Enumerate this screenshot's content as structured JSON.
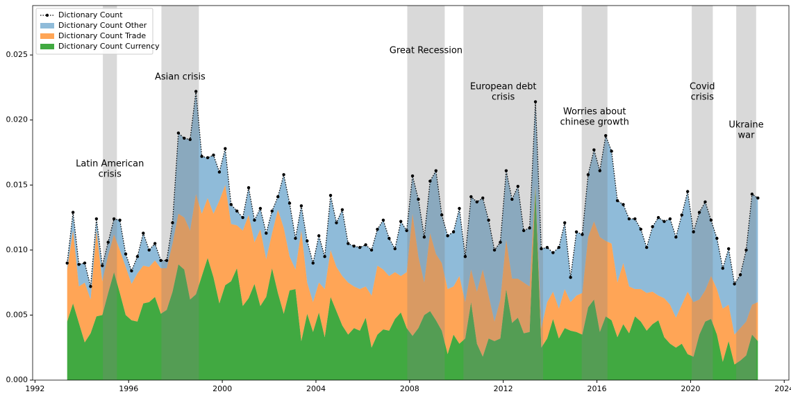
{
  "chart_data": {
    "type": "area",
    "x": [
      1993.375,
      1993.625,
      1993.875,
      1994.125,
      1994.375,
      1994.625,
      1994.875,
      1995.125,
      1995.375,
      1995.625,
      1995.875,
      1996.125,
      1996.375,
      1996.625,
      1996.875,
      1997.125,
      1997.375,
      1997.625,
      1997.875,
      1998.125,
      1998.375,
      1998.625,
      1998.875,
      1999.125,
      1999.375,
      1999.625,
      1999.875,
      2000.125,
      2000.375,
      2000.625,
      2000.875,
      2001.125,
      2001.375,
      2001.625,
      2001.875,
      2002.125,
      2002.375,
      2002.625,
      2002.875,
      2003.125,
      2003.375,
      2003.625,
      2003.875,
      2004.125,
      2004.375,
      2004.625,
      2004.875,
      2005.125,
      2005.375,
      2005.625,
      2005.875,
      2006.125,
      2006.375,
      2006.625,
      2006.875,
      2007.125,
      2007.375,
      2007.625,
      2007.875,
      2008.125,
      2008.375,
      2008.625,
      2008.875,
      2009.125,
      2009.375,
      2009.625,
      2009.875,
      2010.125,
      2010.375,
      2010.625,
      2010.875,
      2011.125,
      2011.375,
      2011.625,
      2011.875,
      2012.125,
      2012.375,
      2012.625,
      2012.875,
      2013.125,
      2013.375,
      2013.625,
      2013.875,
      2014.125,
      2014.375,
      2014.625,
      2014.875,
      2015.125,
      2015.375,
      2015.625,
      2015.875,
      2016.125,
      2016.375,
      2016.625,
      2016.875,
      2017.125,
      2017.375,
      2017.625,
      2017.875,
      2018.125,
      2018.375,
      2018.625,
      2018.875,
      2019.125,
      2019.375,
      2019.625,
      2019.875,
      2020.125,
      2020.375,
      2020.625,
      2020.875,
      2021.125,
      2021.375,
      2021.625,
      2021.875,
      2022.125,
      2022.375,
      2022.625,
      2022.875
    ],
    "series": [
      {
        "name": "Dictionary Count",
        "type": "line",
        "color": "#000000",
        "values": [
          0.009,
          0.0129,
          0.0089,
          0.009,
          0.0072,
          0.0124,
          0.0088,
          0.0106,
          0.0124,
          0.0123,
          0.0097,
          0.0084,
          0.0095,
          0.0113,
          0.01,
          0.0105,
          0.0092,
          0.0092,
          0.0121,
          0.019,
          0.0186,
          0.0185,
          0.0222,
          0.0172,
          0.0171,
          0.0173,
          0.016,
          0.0178,
          0.0135,
          0.013,
          0.0125,
          0.0148,
          0.0123,
          0.0132,
          0.0113,
          0.013,
          0.0141,
          0.0158,
          0.0136,
          0.0109,
          0.0134,
          0.0107,
          0.009,
          0.0111,
          0.0095,
          0.0142,
          0.0121,
          0.0131,
          0.0105,
          0.0103,
          0.0102,
          0.0104,
          0.01,
          0.0116,
          0.0123,
          0.0109,
          0.0101,
          0.0122,
          0.0115,
          0.0157,
          0.0139,
          0.011,
          0.0153,
          0.0161,
          0.0127,
          0.0111,
          0.0114,
          0.0132,
          0.0095,
          0.0141,
          0.0137,
          0.014,
          0.0123,
          0.01,
          0.0106,
          0.0161,
          0.0139,
          0.0149,
          0.0115,
          0.0117,
          0.0214,
          0.0101,
          0.0102,
          0.0098,
          0.0102,
          0.0121,
          0.0079,
          0.0114,
          0.0112,
          0.0158,
          0.0177,
          0.0161,
          0.0188,
          0.0176,
          0.0138,
          0.0135,
          0.0124,
          0.0124,
          0.0116,
          0.0102,
          0.0118,
          0.0125,
          0.0122,
          0.0124,
          0.011,
          0.0127,
          0.0145,
          0.0114,
          0.0129,
          0.0137,
          0.0123,
          0.0109,
          0.0086,
          0.0101,
          0.0074,
          0.0081,
          0.01,
          0.0143,
          0.014
        ]
      },
      {
        "name": "Dictionary Count Other",
        "type": "area",
        "color": "#1f77b4",
        "values": [
          0.0005,
          0.0014,
          0.0017,
          0.0015,
          0.001,
          0.0009,
          0.0012,
          0.001,
          0.0012,
          0.0023,
          0.001,
          0.001,
          0.0013,
          0.0025,
          0.0013,
          0.0013,
          0.0006,
          0.0006,
          0.0016,
          0.0062,
          0.0061,
          0.007,
          0.0079,
          0.0044,
          0.0031,
          0.0045,
          0.0022,
          0.0028,
          0.0015,
          0.0011,
          0.001,
          0.0021,
          0.0017,
          0.0016,
          0.002,
          0.0017,
          0.001,
          0.0041,
          0.0041,
          0.0024,
          0.0019,
          0.0032,
          0.003,
          0.0036,
          0.0025,
          0.0042,
          0.0034,
          0.0051,
          0.003,
          0.0031,
          0.0032,
          0.0032,
          0.0035,
          0.0028,
          0.0038,
          0.0029,
          0.0018,
          0.0042,
          0.0032,
          0.0029,
          0.0044,
          0.0035,
          0.004,
          0.0064,
          0.0037,
          0.0041,
          0.0042,
          0.0052,
          0.0035,
          0.0056,
          0.0069,
          0.0055,
          0.0058,
          0.0055,
          0.0044,
          0.0053,
          0.0061,
          0.0071,
          0.004,
          0.0045,
          0.0064,
          0.0061,
          0.0042,
          0.003,
          0.0047,
          0.0051,
          0.0019,
          0.0049,
          0.0045,
          0.0048,
          0.0055,
          0.0051,
          0.0081,
          0.0071,
          0.0063,
          0.0045,
          0.0052,
          0.0054,
          0.0046,
          0.0035,
          0.005,
          0.006,
          0.0059,
          0.0066,
          0.0062,
          0.0069,
          0.0077,
          0.0054,
          0.0067,
          0.0068,
          0.0043,
          0.0039,
          0.0031,
          0.0043,
          0.0039,
          0.0041,
          0.0055,
          0.0085,
          0.008
        ]
      },
      {
        "name": "Dictionary Count Trade",
        "type": "area",
        "color": "#ff7f0e",
        "values": [
          0.004,
          0.0056,
          0.0028,
          0.0046,
          0.0026,
          0.0066,
          0.0026,
          0.0029,
          0.0029,
          0.0033,
          0.0037,
          0.0028,
          0.0037,
          0.0029,
          0.0027,
          0.0028,
          0.0035,
          0.0032,
          0.0037,
          0.0039,
          0.004,
          0.0053,
          0.0077,
          0.0048,
          0.0046,
          0.0049,
          0.0079,
          0.0077,
          0.0044,
          0.0033,
          0.0058,
          0.0064,
          0.0032,
          0.0059,
          0.0029,
          0.0027,
          0.0064,
          0.0066,
          0.0026,
          0.0015,
          0.0085,
          0.0024,
          0.0023,
          0.0023,
          0.0037,
          0.0036,
          0.0034,
          0.0038,
          0.004,
          0.0032,
          0.0032,
          0.0024,
          0.004,
          0.0053,
          0.0046,
          0.0042,
          0.0036,
          0.0028,
          0.0043,
          0.0094,
          0.0055,
          0.0025,
          0.006,
          0.0051,
          0.0052,
          0.005,
          0.0037,
          0.0052,
          0.0028,
          0.0025,
          0.004,
          0.0067,
          0.0033,
          0.0015,
          0.003,
          0.0038,
          0.0034,
          0.003,
          0.0039,
          0.0035,
          0.0002,
          0.0015,
          0.0028,
          0.0021,
          0.0023,
          0.003,
          0.0022,
          0.0028,
          0.0032,
          0.0054,
          0.006,
          0.0073,
          0.0058,
          0.0059,
          0.0042,
          0.0047,
          0.0036,
          0.0021,
          0.0025,
          0.0029,
          0.0025,
          0.0019,
          0.003,
          0.003,
          0.0023,
          0.003,
          0.0048,
          0.0042,
          0.0027,
          0.0024,
          0.0033,
          0.0035,
          0.0041,
          0.0028,
          0.0023,
          0.0025,
          0.0026,
          0.0023,
          0.003
        ]
      },
      {
        "name": "Dictionary Count Currency",
        "type": "area",
        "color": "#2ca02c",
        "values": [
          0.0045,
          0.0059,
          0.0044,
          0.0029,
          0.0036,
          0.0049,
          0.005,
          0.0067,
          0.0083,
          0.0067,
          0.005,
          0.0046,
          0.0045,
          0.0059,
          0.006,
          0.0064,
          0.0051,
          0.0054,
          0.0068,
          0.0089,
          0.0085,
          0.0062,
          0.0066,
          0.008,
          0.0094,
          0.0079,
          0.0059,
          0.0073,
          0.0076,
          0.0086,
          0.0057,
          0.0063,
          0.0074,
          0.0057,
          0.0064,
          0.0086,
          0.0067,
          0.0051,
          0.0069,
          0.007,
          0.003,
          0.0051,
          0.0037,
          0.0052,
          0.0033,
          0.0064,
          0.0053,
          0.0042,
          0.0035,
          0.004,
          0.0038,
          0.0048,
          0.0025,
          0.0035,
          0.0039,
          0.0038,
          0.0047,
          0.0052,
          0.004,
          0.0034,
          0.004,
          0.005,
          0.0053,
          0.0046,
          0.0038,
          0.002,
          0.0035,
          0.0028,
          0.0032,
          0.006,
          0.0028,
          0.0018,
          0.0032,
          0.003,
          0.0032,
          0.007,
          0.0044,
          0.0048,
          0.0036,
          0.0037,
          0.0148,
          0.0025,
          0.0032,
          0.0047,
          0.0032,
          0.004,
          0.0038,
          0.0037,
          0.0035,
          0.0056,
          0.0062,
          0.0037,
          0.0049,
          0.0046,
          0.0033,
          0.0043,
          0.0036,
          0.0049,
          0.0045,
          0.0038,
          0.0043,
          0.0046,
          0.0033,
          0.0028,
          0.0025,
          0.0028,
          0.002,
          0.0018,
          0.0035,
          0.0045,
          0.0047,
          0.0035,
          0.0014,
          0.003,
          0.0012,
          0.0015,
          0.0019,
          0.0035,
          0.003
        ]
      }
    ],
    "stacked": true,
    "shaded_periods": [
      {
        "start": 1994.9,
        "end": 1995.5,
        "label": [
          "Latin American",
          "crisis"
        ]
      },
      {
        "start": 1997.4,
        "end": 1999.0,
        "label": [
          "Asian crisis"
        ]
      },
      {
        "start": 2007.9,
        "end": 2009.5,
        "label": [
          "Great Recession"
        ]
      },
      {
        "start": 2010.3,
        "end": 2013.7,
        "label": [
          "European debt",
          "crisis"
        ]
      },
      {
        "start": 2015.35,
        "end": 2016.45,
        "label": [
          "Worries about",
          "chinese growth"
        ]
      },
      {
        "start": 2020.05,
        "end": 2020.95,
        "label": [
          "Covid",
          "crisis"
        ]
      },
      {
        "start": 2021.95,
        "end": 2022.8,
        "label": [
          "Ukraine",
          "war"
        ]
      }
    ],
    "xlim": [
      1991.9,
      2024.2
    ],
    "xticks": [
      1992,
      1996,
      2000,
      2004,
      2008,
      2012,
      2016,
      2020,
      2024
    ],
    "ylim": [
      0,
      0.0288
    ],
    "yticks": [
      {
        "value": 0,
        "label": "0.000"
      },
      0.005,
      {
        "value": 0.01,
        "label": "0.010"
      },
      0.015,
      {
        "value": 0.02,
        "label": "0.020"
      },
      0.025
    ],
    "legend": "upper left",
    "grid": false
  }
}
